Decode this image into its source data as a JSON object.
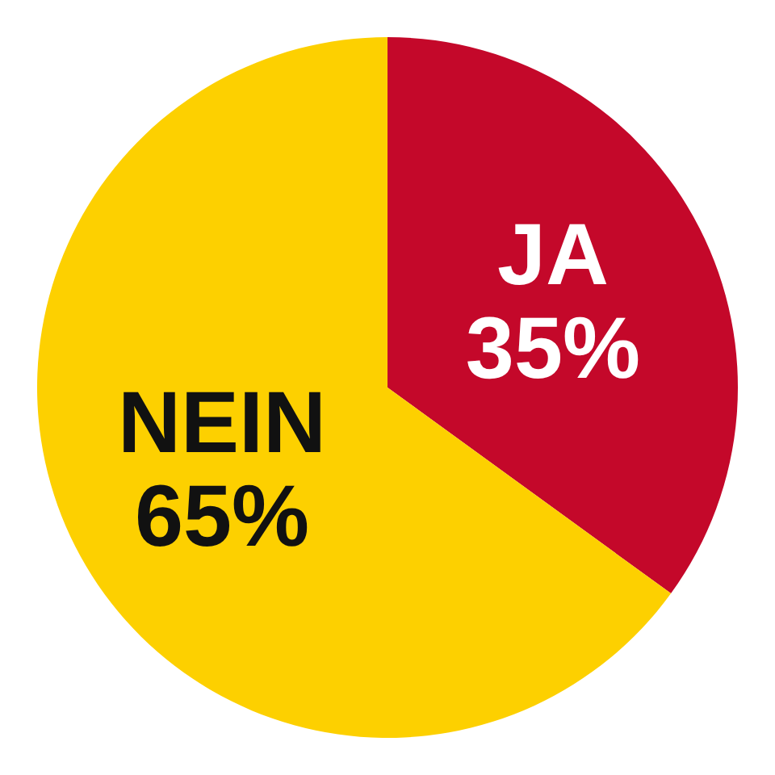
{
  "chart_data": {
    "type": "pie",
    "categories": [
      "JA",
      "NEIN"
    ],
    "values": [
      35,
      65
    ],
    "colors": [
      "#c4082a",
      "#fdd000"
    ],
    "value_labels": [
      "35%",
      "65%"
    ]
  }
}
